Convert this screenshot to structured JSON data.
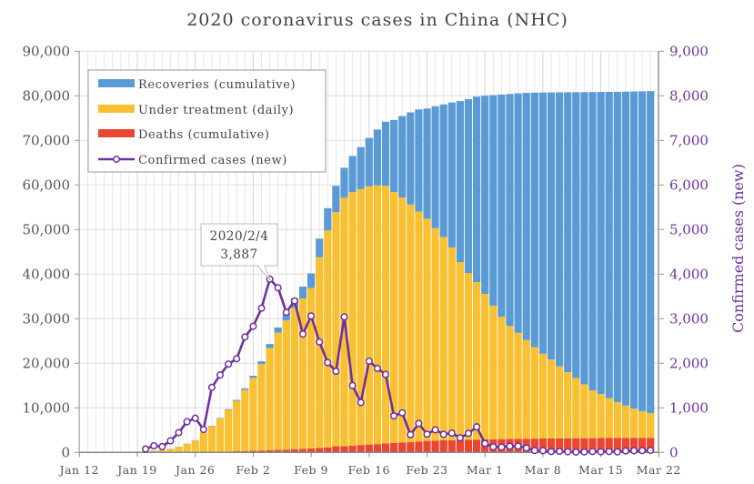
{
  "chart_data": {
    "type": "bar",
    "title": "2020 coronavirus cases in China (NHC)",
    "stacked": true,
    "x_start": "2020-01-12",
    "x_ticks": [
      "Jan 12",
      "Jan 19",
      "Jan 26",
      "Feb 2",
      "Feb 9",
      "Feb 16",
      "Feb 23",
      "Mar 1",
      "Mar 8",
      "Mar 15",
      "Mar 22"
    ],
    "ylim": [
      0,
      90000
    ],
    "y_ticks": [
      "0",
      "10,000",
      "20,000",
      "30,000",
      "40,000",
      "50,000",
      "60,000",
      "70,000",
      "80,000",
      "90,000"
    ],
    "y2lim": [
      0,
      9000
    ],
    "y2_ticks": [
      "0",
      "1,000",
      "2,000",
      "3,000",
      "4,000",
      "5,000",
      "6,000",
      "7,000",
      "8,000",
      "9,000"
    ],
    "y2label": "Confirmed cases (new)",
    "grid": true,
    "legend_position": "top-left",
    "colors": {
      "recoveries": "#5b9bd5",
      "under_treatment": "#f9c032",
      "deaths": "#ec4530",
      "confirmed_new": "#7030a0"
    },
    "bar_dates_from": "Jan 12",
    "series": [
      {
        "name": "Deaths (cumulative)",
        "key": "deaths",
        "axis": "left",
        "values": [
          1,
          1,
          1,
          1,
          2,
          2,
          2,
          3,
          6,
          9,
          17,
          25,
          41,
          56,
          80,
          106,
          132,
          170,
          213,
          259,
          304,
          361,
          425,
          490,
          563,
          636,
          722,
          811,
          908,
          1016,
          1113,
          1367,
          1380,
          1523,
          1665,
          1770,
          1868,
          2004,
          2118,
          2236,
          2345,
          2442,
          2592,
          2663,
          2715,
          2744,
          2788,
          2835,
          2870,
          2912,
          2943,
          2981,
          3012,
          3042,
          3070,
          3097,
          3119,
          3136,
          3158,
          3169,
          3176,
          3189,
          3199,
          3213,
          3226,
          3237,
          3245,
          3248,
          3255,
          3261
        ]
      },
      {
        "name": "Under treatment (daily)",
        "key": "under_treatment",
        "axis": "left",
        "values": [
          40,
          40,
          40,
          40,
          43,
          60,
          119,
          195,
          260,
          403,
          526,
          771,
          1208,
          1870,
          2613,
          4349,
          5739,
          7417,
          9308,
          11289,
          13748,
          16369,
          19381,
          22942,
          26302,
          28985,
          31774,
          33738,
          35982,
          42784,
          48687,
          52526,
          55748,
          56873,
          57416,
          57934,
          58016,
          57805,
          56303,
          54965,
          53284,
          51606,
          49824,
          47672,
          45604,
          43258,
          39919,
          37414,
          35329,
          32652,
          30004,
          27433,
          25352,
          23784,
          22177,
          20533,
          19016,
          17721,
          16145,
          14831,
          13526,
          12094,
          10734,
          9898,
          8976,
          8056,
          7263,
          6569,
          6013,
          5549
        ]
      },
      {
        "name": "Recoveries (cumulative)",
        "key": "recoveries",
        "axis": "left",
        "values": [
          0,
          0,
          0,
          0,
          0,
          0,
          0,
          0,
          25,
          28,
          28,
          34,
          38,
          49,
          51,
          60,
          103,
          124,
          171,
          243,
          328,
          475,
          632,
          892,
          1153,
          1540,
          2050,
          2649,
          3281,
          4160,
          5000,
          5911,
          6723,
          8096,
          9419,
          10844,
          12552,
          14376,
          16155,
          18264,
          20659,
          22888,
          24734,
          27323,
          29745,
          32495,
          36117,
          39002,
          41625,
          44462,
          47204,
          49856,
          52045,
          53726,
          55404,
          57065,
          58600,
          59897,
          61475,
          62793,
          64111,
          65541,
          66911,
          67749,
          68679,
          69601,
          70420,
          71150,
          71740,
          72244
        ]
      },
      {
        "name": "Confirmed cases (new)",
        "key": "confirmed_new",
        "axis": "right",
        "type": "line",
        "start": "Jan 20",
        "values": [
          77,
          149,
          131,
          259,
          444,
          688,
          769,
          515,
          1459,
          1737,
          1981,
          2102,
          2590,
          2829,
          3235,
          3887,
          3694,
          3143,
          3399,
          2656,
          3062,
          2478,
          2015,
          1820,
          3040,
          1500,
          1120,
          2048,
          1886,
          1749,
          820,
          889,
          397,
          648,
          409,
          508,
          406,
          433,
          327,
          427,
          573,
          202,
          125,
          119,
          139,
          143,
          99,
          44,
          40,
          19,
          24,
          15,
          8,
          11,
          20,
          16,
          21,
          13,
          34,
          39,
          41,
          46
        ]
      }
    ],
    "legend": [
      "Recoveries (cumulative)",
      "Under treatment (daily)",
      "Deaths (cumulative)",
      "Confirmed cases (new)"
    ],
    "annotation": {
      "date": "2020/2/4",
      "value": "3,887"
    }
  }
}
